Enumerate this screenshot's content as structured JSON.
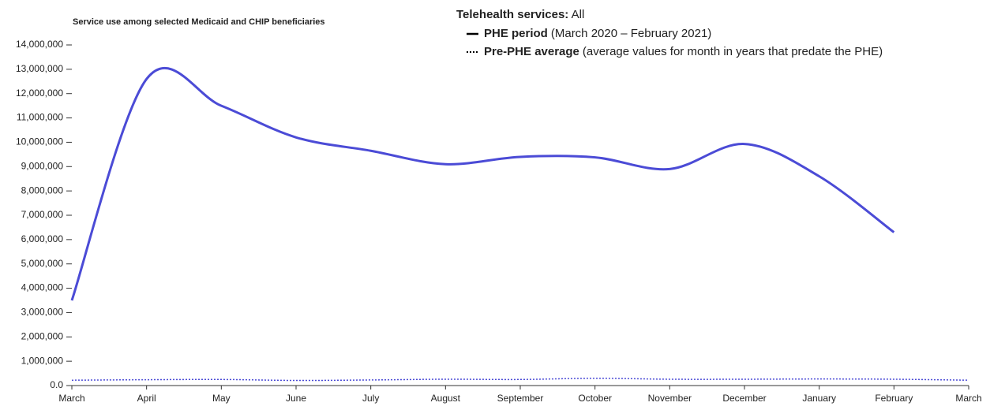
{
  "chart_data": {
    "type": "line",
    "title": "Service use among selected Medicaid and CHIP beneficiaries",
    "legend_title": "Telehealth services:",
    "legend_filter": "All",
    "categories": [
      "March",
      "April",
      "May",
      "June",
      "July",
      "August",
      "September",
      "October",
      "November",
      "December",
      "January",
      "February",
      "March"
    ],
    "series": [
      {
        "name": "PHE period",
        "description": "(March 2020 – February 2021)",
        "color": "#4b4bd6",
        "dash": "solid",
        "values": [
          3500000,
          12600000,
          11500000,
          10200000,
          9650000,
          9100000,
          9400000,
          9380000,
          8900000,
          9930000,
          8600000,
          6300000,
          null
        ]
      },
      {
        "name": "Pre-PHE average",
        "description": "(average values for month in years that predate the PHE)",
        "color": "#4b4bd6",
        "dash": "dotted",
        "values": [
          220000,
          240000,
          250000,
          210000,
          230000,
          260000,
          250000,
          300000,
          260000,
          260000,
          270000,
          260000,
          220000
        ]
      }
    ],
    "ylim": [
      0,
      14000000
    ],
    "yticks": [
      {
        "value": 0,
        "label": "0.0"
      },
      {
        "value": 1000000,
        "label": "1,000,000"
      },
      {
        "value": 2000000,
        "label": "2,000,000"
      },
      {
        "value": 3000000,
        "label": "3,000,000"
      },
      {
        "value": 4000000,
        "label": "4,000,000"
      },
      {
        "value": 5000000,
        "label": "5,000,000"
      },
      {
        "value": 6000000,
        "label": "6,000,000"
      },
      {
        "value": 7000000,
        "label": "7,000,000"
      },
      {
        "value": 8000000,
        "label": "8,000,000"
      },
      {
        "value": 9000000,
        "label": "9,000,000"
      },
      {
        "value": 10000000,
        "label": "10,000,000"
      },
      {
        "value": 11000000,
        "label": "11,000,000"
      },
      {
        "value": 12000000,
        "label": "12,000,000"
      },
      {
        "value": 13000000,
        "label": "13,000,000"
      },
      {
        "value": 14000000,
        "label": "14,000,000"
      }
    ],
    "grid": false
  }
}
